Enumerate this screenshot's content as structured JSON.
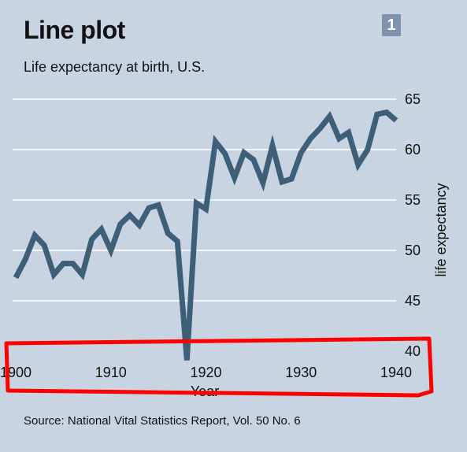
{
  "header": {
    "title": "Line plot",
    "badge": "1"
  },
  "footer": {
    "source": "Source:  National Vital Statistics Report, Vol. 50 No. 6"
  },
  "annotation": {
    "highlight_color": "#ff0000",
    "note": "red rectangle highlights the x-axis tick label row"
  },
  "colors": {
    "background": "#c8d4e1",
    "line": "#3f5f78",
    "grid": "#ffffff",
    "badge": "#7f93aa"
  },
  "chart_data": {
    "type": "line",
    "title": "Line plot",
    "subtitle": "Life expectancy at birth, U.S.",
    "xlabel": "Year",
    "ylabel": "life expectancy",
    "xlim": [
      1900,
      1940
    ],
    "ylim": [
      38.5,
      65
    ],
    "x_ticks": [
      1900,
      1910,
      1920,
      1930,
      1940
    ],
    "y_ticks": [
      40,
      45,
      50,
      55,
      60,
      65
    ],
    "grid": "horizontal",
    "y_axis_side": "right",
    "series": [
      {
        "name": "",
        "x": [
          1900,
          1901,
          1902,
          1903,
          1904,
          1905,
          1906,
          1907,
          1908,
          1909,
          1910,
          1911,
          1912,
          1913,
          1914,
          1915,
          1916,
          1917,
          1918,
          1919,
          1920,
          1921,
          1922,
          1923,
          1924,
          1925,
          1926,
          1927,
          1928,
          1929,
          1930,
          1931,
          1932,
          1933,
          1934,
          1935,
          1936,
          1937,
          1938,
          1939,
          1940
        ],
        "values": [
          47.3,
          49.1,
          51.5,
          50.5,
          47.6,
          48.7,
          48.7,
          47.6,
          51.1,
          52.1,
          50.0,
          52.6,
          53.5,
          52.5,
          54.2,
          54.5,
          51.7,
          50.9,
          39.1,
          54.7,
          54.1,
          60.8,
          59.6,
          57.2,
          59.7,
          59.0,
          56.7,
          60.4,
          56.8,
          57.1,
          59.7,
          61.1,
          62.1,
          63.3,
          61.1,
          61.7,
          58.5,
          60.0,
          63.5,
          63.7,
          62.9
        ]
      }
    ]
  }
}
